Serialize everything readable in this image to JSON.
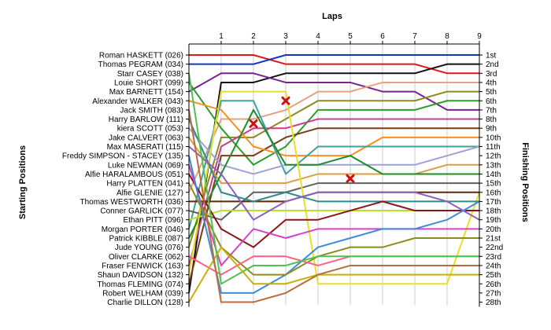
{
  "chart_data": {
    "type": "line",
    "title": "",
    "xlabel": "Laps",
    "ylabel_left": "Starting Positions",
    "ylabel_right": "Finishing Positions",
    "x": [
      0,
      1,
      2,
      3,
      4,
      5,
      6,
      7,
      8,
      9
    ],
    "x_tick_labels": [
      "1",
      "2",
      "3",
      "4",
      "5",
      "6",
      "7",
      "8",
      "9"
    ],
    "y_range": [
      1,
      28
    ],
    "y_inverted": true,
    "grid": "vertical",
    "start_labels": [
      "Roman HASKETT (026)",
      "Thomas PEGRAM (034)",
      "Starr CASEY (038)",
      "Louie SHORT (099)",
      "Max BARNETT (154)",
      "Alexander WALKER (043)",
      "Jack SMITH (083)",
      "Harry BARLOW (111)",
      "kiera SCOTT (053)",
      "Jake CALVERT (063)",
      "Max MASERATI (115)",
      "Freddy SIMPSON - STACEY (135)",
      "Luke NEWMAN (069)",
      "Alfie HARALAMBOUS (051)",
      "Harry PLATTEN (041)",
      "Alfie GLENIE (127)",
      "Thomas WESTWORTH (036)",
      "Conner GARLICK (077)",
      "Ethan PITT (096)",
      "Morgan PORTER (046)",
      "Patrick KIBBLE (087)",
      "Jude YOUNG (076)",
      "Oliver CLARKE (062)",
      "Fraser FENWICK (163)",
      "Shaun DAVIDSON (132)",
      "Thomas FLEMING (074)",
      "Robert WELHAM (039)",
      "Charlie DILLON (128)"
    ],
    "finish_labels": [
      "1st",
      "2nd",
      "3rd",
      "4th",
      "5th",
      "6th",
      "7th",
      "8th",
      "9th",
      "10th",
      "11th",
      "12th",
      "13th",
      "14th",
      "15th",
      "16th",
      "17th",
      "18th",
      "19th",
      "20th",
      "21st",
      "22nd",
      "23rd",
      "24th",
      "25th",
      "26th",
      "27th",
      "28th"
    ],
    "series": [
      {
        "color": "#e01818",
        "values": [
          1,
          1,
          1,
          2,
          2,
          2,
          2,
          2,
          3,
          3
        ]
      },
      {
        "color": "#1432c8",
        "values": [
          2,
          2,
          2,
          1,
          1,
          1,
          1,
          1,
          1,
          1
        ]
      },
      {
        "color": "#111111",
        "values": [
          27,
          4,
          4,
          3,
          3,
          3,
          3,
          3,
          2,
          2
        ]
      },
      {
        "color": "#7a2090",
        "values": [
          5,
          3,
          3,
          4,
          4,
          4,
          5,
          5,
          7,
          7
        ]
      },
      {
        "color": "#e8a080",
        "values": [
          16,
          8,
          8,
          7,
          5,
          5,
          4,
          4,
          4,
          4
        ]
      },
      {
        "color": "#8a8a20",
        "values": [
          22,
          10,
          10,
          8,
          6,
          6,
          6,
          6,
          5,
          5
        ]
      },
      {
        "color": "#28a028",
        "values": [
          4,
          9,
          13,
          11,
          7,
          7,
          7,
          7,
          6,
          6
        ]
      },
      {
        "color": "#c83c90",
        "values": [
          24,
          11,
          9,
          9,
          8,
          8,
          8,
          8,
          8,
          8
        ]
      },
      {
        "color": "#7a3c14",
        "values": [
          26,
          12,
          12,
          10,
          9,
          9,
          9,
          9,
          9,
          9
        ]
      },
      {
        "color": "#ff8c1a",
        "values": [
          6,
          7,
          11,
          12,
          12,
          12,
          10,
          10,
          10,
          10
        ]
      },
      {
        "color": "#40a0a0",
        "values": [
          20,
          6,
          6,
          14,
          11,
          11,
          11,
          11,
          11,
          11
        ]
      },
      {
        "color": "#a0a0d8",
        "values": [
          9,
          13,
          14,
          13,
          13,
          13,
          13,
          13,
          12,
          11
        ]
      },
      {
        "color": "#d8a040",
        "values": [
          10,
          15,
          15,
          15,
          14,
          14,
          14,
          14,
          13,
          13
        ]
      },
      {
        "color": "#1c8c28",
        "values": [
          21,
          14,
          7,
          13,
          13,
          12,
          14,
          14,
          14,
          14
        ]
      },
      {
        "color": "#606060",
        "values": [
          18,
          19,
          16,
          16,
          15,
          15,
          15,
          15,
          15,
          15
        ]
      },
      {
        "color": "#e8e028",
        "values": [
          25,
          5,
          5,
          5,
          26,
          26,
          26,
          26,
          26,
          16
        ]
      },
      {
        "color": "#5a2a0a",
        "values": [
          17,
          17,
          17,
          17,
          16,
          16,
          16,
          16,
          16,
          16
        ]
      },
      {
        "color": "#2c8c8c",
        "values": [
          8,
          16,
          17,
          16,
          17,
          17,
          17,
          17,
          17,
          17
        ]
      },
      {
        "color": "#b8e028",
        "values": [
          19,
          18,
          18,
          18,
          18,
          18,
          18,
          18,
          18,
          18
        ]
      },
      {
        "color": "#8c1414",
        "values": [
          14,
          20,
          22,
          19,
          19,
          18,
          17,
          18,
          18,
          18
        ]
      },
      {
        "color": "#d840c8",
        "values": [
          13,
          24,
          20,
          21,
          20,
          20,
          20,
          20,
          20,
          20
        ]
      },
      {
        "color": "#9060c0",
        "values": [
          11,
          14,
          19,
          17,
          16,
          16,
          16,
          16,
          17,
          19
        ]
      },
      {
        "color": "#3c8cd8",
        "values": [
          12,
          27,
          27,
          25,
          22,
          21,
          20,
          20,
          19,
          17
        ]
      },
      {
        "color": "#8c8c1e",
        "values": [
          15,
          22,
          25,
          25,
          23,
          22,
          22,
          21,
          21,
          21
        ]
      },
      {
        "color": "#ff6080",
        "values": [
          23,
          25,
          23,
          23,
          24,
          23,
          23,
          23,
          23,
          23
        ]
      },
      {
        "color": "#50c050",
        "values": [
          3,
          26,
          24,
          24,
          23,
          23,
          23,
          23,
          23,
          23
        ]
      },
      {
        "color": "#c8b000",
        "values": [
          28,
          22,
          26,
          26,
          25,
          25,
          25,
          25,
          25,
          25
        ]
      },
      {
        "color": "#b86c3c",
        "values": [
          7,
          28,
          28,
          27,
          25,
          24,
          24,
          24,
          24,
          24
        ]
      }
    ],
    "markers": [
      {
        "label": "x",
        "color": "#cc1111",
        "x": 2,
        "y": 8.5
      },
      {
        "label": "x",
        "color": "#cc1111",
        "x": 3,
        "y": 6
      },
      {
        "label": "x",
        "color": "#cc1111",
        "x": 5,
        "y": 14.5
      }
    ]
  }
}
